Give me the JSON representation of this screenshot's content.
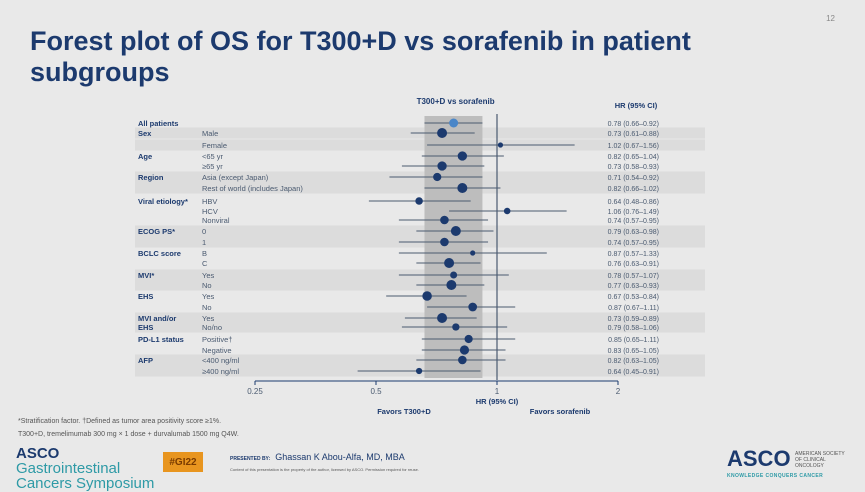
{
  "slide": {
    "title": "Forest plot of OS for T300+D vs sorafenib in patient subgroups",
    "page_number": "12",
    "footnote_1": "*Stratification factor. †Defined as tumor area positivity score ≥1%.",
    "footnote_2": "T300+D, tremelimumab 300 mg × 1 dose + durvalumab 1500 mg Q4W.",
    "logo_left_bold": "ASCO",
    "logo_left_text": "Gastrointestinal Cancers Symposium",
    "hashtag": "#GI22",
    "presented_by_label": "PRESENTED BY:",
    "presenter": "Ghassan K Abou-Alfa, MD, MBA",
    "copyright": "Content of this presentation is the property of the author, licensed by ASCO. Permission required for reuse.",
    "logo_right": "ASCO",
    "logo_right_sub": "AMERICAN SOCIETY OF CLINICAL ONCOLOGY",
    "logo_right_tagline": "KNOWLEDGE CONQUERS CANCER"
  },
  "chart_data": {
    "type": "forest",
    "title": "T300+D vs sorafenib",
    "column_header": "HR (95% CI)",
    "xlabel": "HR (95% CI)",
    "favors_left": "Favors T300+D",
    "favors_right": "Favors sorafenib",
    "x_scale": "log",
    "xlim": [
      0.25,
      2
    ],
    "x_ticks": [
      "0.25",
      "0.5",
      "1",
      "2"
    ],
    "reference_line": 1,
    "shaded_band": [
      0.66,
      0.92
    ],
    "colors": {
      "marker": "#1c3a6e",
      "overall_marker": "#4a86c8",
      "band": "#bdbdbd",
      "line": "#4a5a70"
    },
    "rows": [
      {
        "group": "All patients",
        "label": "",
        "hr": 0.78,
        "lo": 0.66,
        "hi": 0.92,
        "text": "0.78 (0.66–0.92)",
        "overall": true
      },
      {
        "group": "Sex",
        "label": "Male",
        "hr": 0.73,
        "lo": 0.61,
        "hi": 0.88,
        "text": "0.73 (0.61–0.88)"
      },
      {
        "group": "",
        "label": "Female",
        "hr": 1.02,
        "lo": 0.67,
        "hi": 1.56,
        "text": "1.02 (0.67–1.56)"
      },
      {
        "group": "Age",
        "label": "<65 yr",
        "hr": 0.82,
        "lo": 0.65,
        "hi": 1.04,
        "text": "0.82 (0.65–1.04)"
      },
      {
        "group": "",
        "label": "≥65 yr",
        "hr": 0.73,
        "lo": 0.58,
        "hi": 0.93,
        "text": "0.73 (0.58–0.93)"
      },
      {
        "group": "Region",
        "label": "Asia (except Japan)",
        "hr": 0.71,
        "lo": 0.54,
        "hi": 0.92,
        "text": "0.71 (0.54–0.92)"
      },
      {
        "group": "",
        "label": "Rest of world (includes Japan)",
        "hr": 0.82,
        "lo": 0.66,
        "hi": 1.02,
        "text": "0.82 (0.66–1.02)"
      },
      {
        "group": "Viral etiology*",
        "label": "HBV",
        "hr": 0.64,
        "lo": 0.48,
        "hi": 0.86,
        "text": "0.64 (0.48–0.86)"
      },
      {
        "group": "",
        "label": "HCV",
        "hr": 1.06,
        "lo": 0.76,
        "hi": 1.49,
        "text": "1.06 (0.76–1.49)"
      },
      {
        "group": "",
        "label": "Nonviral",
        "hr": 0.74,
        "lo": 0.57,
        "hi": 0.95,
        "text": "0.74 (0.57–0.95)"
      },
      {
        "group": "ECOG PS*",
        "label": "0",
        "hr": 0.79,
        "lo": 0.63,
        "hi": 0.98,
        "text": "0.79 (0.63–0.98)"
      },
      {
        "group": "",
        "label": "1",
        "hr": 0.74,
        "lo": 0.57,
        "hi": 0.95,
        "text": "0.74 (0.57–0.95)"
      },
      {
        "group": "BCLC score",
        "label": "B",
        "hr": 0.87,
        "lo": 0.57,
        "hi": 1.33,
        "text": "0.87 (0.57–1.33)"
      },
      {
        "group": "",
        "label": "C",
        "hr": 0.76,
        "lo": 0.63,
        "hi": 0.91,
        "text": "0.76 (0.63–0.91)"
      },
      {
        "group": "MVI*",
        "label": "Yes",
        "hr": 0.78,
        "lo": 0.57,
        "hi": 1.07,
        "text": "0.78 (0.57–1.07)"
      },
      {
        "group": "",
        "label": "No",
        "hr": 0.77,
        "lo": 0.63,
        "hi": 0.93,
        "text": "0.77 (0.63–0.93)"
      },
      {
        "group": "EHS",
        "label": "Yes",
        "hr": 0.67,
        "lo": 0.53,
        "hi": 0.84,
        "text": "0.67 (0.53–0.84)"
      },
      {
        "group": "",
        "label": "No",
        "hr": 0.87,
        "lo": 0.67,
        "hi": 1.11,
        "text": "0.87 (0.67–1.11)"
      },
      {
        "group": "MVI and/or",
        "label": "Yes",
        "hr": 0.73,
        "lo": 0.59,
        "hi": 0.89,
        "text": "0.73 (0.59–0.89)"
      },
      {
        "group": "EHS",
        "label": "No/no",
        "hr": 0.79,
        "lo": 0.58,
        "hi": 1.06,
        "text": "0.79 (0.58–1.06)"
      },
      {
        "group": "PD-L1 status",
        "label": "Positive†",
        "hr": 0.85,
        "lo": 0.65,
        "hi": 1.11,
        "text": "0.85 (0.65–1.11)"
      },
      {
        "group": "",
        "label": "Negative",
        "hr": 0.83,
        "lo": 0.65,
        "hi": 1.05,
        "text": "0.83 (0.65–1.05)"
      },
      {
        "group": "AFP",
        "label": "<400 ng/ml",
        "hr": 0.82,
        "lo": 0.63,
        "hi": 1.05,
        "text": "0.82 (0.63–1.05)"
      },
      {
        "group": "",
        "label": "≥400 ng/ml",
        "hr": 0.64,
        "lo": 0.45,
        "hi": 0.91,
        "text": "0.64 (0.45–0.91)"
      }
    ]
  }
}
